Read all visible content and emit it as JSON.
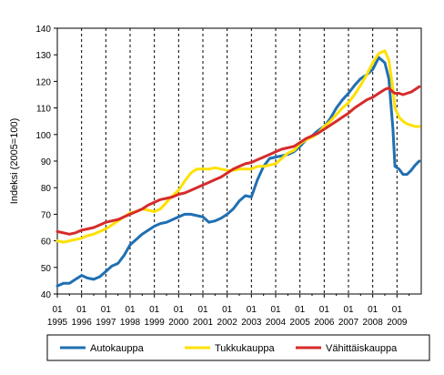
{
  "chart_data": {
    "type": "line",
    "ylabel": "Indeksi (2005=100)",
    "ylim": [
      40,
      140
    ],
    "yticks": [
      40,
      50,
      60,
      70,
      80,
      90,
      100,
      110,
      120,
      130,
      140
    ],
    "x_start": "1995-01",
    "x_end": "2009-12",
    "month_tick_label": "01",
    "year_labels": [
      "1995",
      "1996",
      "1997",
      "1998",
      "1999",
      "2000",
      "2001",
      "2002",
      "2003",
      "2004",
      "2005",
      "2006",
      "2007",
      "2008",
      "2009"
    ],
    "grid": "vertical dashed at each January",
    "legend_position": "bottom",
    "series": [
      {
        "name": "Autokauppa",
        "color": "#1f6fb2",
        "points": [
          [
            "1995-01",
            43
          ],
          [
            "1995-04",
            44
          ],
          [
            "1995-07",
            44
          ],
          [
            "1995-10",
            45.5
          ],
          [
            "1996-01",
            47
          ],
          [
            "1996-04",
            46
          ],
          [
            "1996-07",
            45.5
          ],
          [
            "1996-10",
            46.5
          ],
          [
            "1997-01",
            48.5
          ],
          [
            "1997-04",
            50.5
          ],
          [
            "1997-07",
            51.5
          ],
          [
            "1997-10",
            54.5
          ],
          [
            "1998-01",
            58.5
          ],
          [
            "1998-04",
            60.5
          ],
          [
            "1998-07",
            62.5
          ],
          [
            "1998-10",
            64
          ],
          [
            "1999-01",
            65.5
          ],
          [
            "1999-04",
            66.5
          ],
          [
            "1999-07",
            67
          ],
          [
            "1999-10",
            68
          ],
          [
            "2000-01",
            69
          ],
          [
            "2000-04",
            70
          ],
          [
            "2000-07",
            70
          ],
          [
            "2000-10",
            69.5
          ],
          [
            "2001-01",
            69
          ],
          [
            "2001-04",
            67
          ],
          [
            "2001-07",
            67.5
          ],
          [
            "2001-10",
            68.5
          ],
          [
            "2002-01",
            70
          ],
          [
            "2002-04",
            72
          ],
          [
            "2002-07",
            75
          ],
          [
            "2002-10",
            77
          ],
          [
            "2003-01",
            76.5
          ],
          [
            "2003-04",
            83
          ],
          [
            "2003-07",
            88
          ],
          [
            "2003-10",
            91
          ],
          [
            "2004-01",
            91.5
          ],
          [
            "2004-04",
            92
          ],
          [
            "2004-07",
            92.5
          ],
          [
            "2004-10",
            93.5
          ],
          [
            "2005-01",
            95.5
          ],
          [
            "2005-04",
            98
          ],
          [
            "2005-07",
            99.5
          ],
          [
            "2005-10",
            101.5
          ],
          [
            "2006-01",
            103
          ],
          [
            "2006-04",
            106
          ],
          [
            "2006-07",
            110
          ],
          [
            "2006-10",
            113
          ],
          [
            "2007-01",
            115.5
          ],
          [
            "2007-04",
            118.5
          ],
          [
            "2007-07",
            121
          ],
          [
            "2007-10",
            122.5
          ],
          [
            "2008-01",
            124.5
          ],
          [
            "2008-04",
            129
          ],
          [
            "2008-07",
            127
          ],
          [
            "2008-09",
            121
          ],
          [
            "2008-11",
            102
          ],
          [
            "2008-12",
            88
          ],
          [
            "2009-02",
            87
          ],
          [
            "2009-04",
            85
          ],
          [
            "2009-06",
            85
          ],
          [
            "2009-08",
            86.5
          ],
          [
            "2009-10",
            88.5
          ],
          [
            "2009-12",
            90
          ]
        ]
      },
      {
        "name": "Tukkukauppa",
        "color": "#ffe000",
        "points": [
          [
            "1995-01",
            60
          ],
          [
            "1995-04",
            59.5
          ],
          [
            "1995-07",
            60
          ],
          [
            "1995-10",
            60.5
          ],
          [
            "1996-01",
            61
          ],
          [
            "1996-04",
            62
          ],
          [
            "1996-07",
            62.5
          ],
          [
            "1996-10",
            63.5
          ],
          [
            "1997-01",
            64.5
          ],
          [
            "1997-04",
            66
          ],
          [
            "1997-07",
            67.5
          ],
          [
            "1997-10",
            69
          ],
          [
            "1998-01",
            70.5
          ],
          [
            "1998-04",
            71
          ],
          [
            "1998-07",
            72
          ],
          [
            "1998-10",
            71.5
          ],
          [
            "1999-01",
            71
          ],
          [
            "1999-04",
            72
          ],
          [
            "1999-07",
            74.5
          ],
          [
            "1999-10",
            77
          ],
          [
            "2000-01",
            79
          ],
          [
            "2000-04",
            82.5
          ],
          [
            "2000-07",
            85.5
          ],
          [
            "2000-10",
            87
          ],
          [
            "2001-01",
            87
          ],
          [
            "2001-04",
            87
          ],
          [
            "2001-07",
            87.5
          ],
          [
            "2001-10",
            87
          ],
          [
            "2002-01",
            86.5
          ],
          [
            "2002-04",
            86.5
          ],
          [
            "2002-07",
            87
          ],
          [
            "2002-10",
            87
          ],
          [
            "2003-01",
            87
          ],
          [
            "2003-04",
            88
          ],
          [
            "2003-07",
            88
          ],
          [
            "2003-10",
            88.5
          ],
          [
            "2004-01",
            89
          ],
          [
            "2004-04",
            91
          ],
          [
            "2004-07",
            93
          ],
          [
            "2004-10",
            94
          ],
          [
            "2005-01",
            96.5
          ],
          [
            "2005-04",
            98
          ],
          [
            "2005-07",
            99
          ],
          [
            "2005-10",
            100.5
          ],
          [
            "2006-01",
            103
          ],
          [
            "2006-04",
            105
          ],
          [
            "2006-07",
            107.5
          ],
          [
            "2006-10",
            110
          ],
          [
            "2007-01",
            112
          ],
          [
            "2007-04",
            115
          ],
          [
            "2007-07",
            118.5
          ],
          [
            "2007-10",
            122.5
          ],
          [
            "2008-01",
            127
          ],
          [
            "2008-04",
            130.5
          ],
          [
            "2008-07",
            131.5
          ],
          [
            "2008-09",
            128
          ],
          [
            "2008-11",
            117
          ],
          [
            "2008-12",
            110
          ],
          [
            "2009-02",
            106.5
          ],
          [
            "2009-04",
            105
          ],
          [
            "2009-06",
            104
          ],
          [
            "2009-08",
            103.5
          ],
          [
            "2009-10",
            103
          ],
          [
            "2009-12",
            103
          ]
        ]
      },
      {
        "name": "Vähittäiskauppa",
        "color": "#d62b2b",
        "points": [
          [
            "1995-01",
            63.5
          ],
          [
            "1995-04",
            63
          ],
          [
            "1995-07",
            62.5
          ],
          [
            "1995-10",
            63
          ],
          [
            "1996-01",
            64
          ],
          [
            "1996-04",
            64.5
          ],
          [
            "1996-07",
            65
          ],
          [
            "1996-10",
            66
          ],
          [
            "1997-01",
            67
          ],
          [
            "1997-04",
            67.5
          ],
          [
            "1997-07",
            68
          ],
          [
            "1997-10",
            69
          ],
          [
            "1998-01",
            70
          ],
          [
            "1998-04",
            71
          ],
          [
            "1998-07",
            72
          ],
          [
            "1998-10",
            73.5
          ],
          [
            "1999-01",
            74.5
          ],
          [
            "1999-04",
            75.5
          ],
          [
            "1999-07",
            76
          ],
          [
            "1999-10",
            76.5
          ],
          [
            "2000-01",
            77.5
          ],
          [
            "2000-04",
            78
          ],
          [
            "2000-07",
            79
          ],
          [
            "2000-10",
            80
          ],
          [
            "2001-01",
            81
          ],
          [
            "2001-04",
            82
          ],
          [
            "2001-07",
            83
          ],
          [
            "2001-10",
            84
          ],
          [
            "2002-01",
            85.5
          ],
          [
            "2002-04",
            87
          ],
          [
            "2002-07",
            88
          ],
          [
            "2002-10",
            89
          ],
          [
            "2003-01",
            89.5
          ],
          [
            "2003-04",
            90.5
          ],
          [
            "2003-07",
            91.5
          ],
          [
            "2003-10",
            92.5
          ],
          [
            "2004-01",
            93.5
          ],
          [
            "2004-04",
            94.5
          ],
          [
            "2004-07",
            95
          ],
          [
            "2004-10",
            95.5
          ],
          [
            "2005-01",
            97
          ],
          [
            "2005-04",
            98.5
          ],
          [
            "2005-07",
            99.5
          ],
          [
            "2005-10",
            100.5
          ],
          [
            "2006-01",
            102
          ],
          [
            "2006-04",
            103.5
          ],
          [
            "2006-07",
            105
          ],
          [
            "2006-10",
            106.5
          ],
          [
            "2007-01",
            108
          ],
          [
            "2007-04",
            110
          ],
          [
            "2007-07",
            111.5
          ],
          [
            "2007-10",
            113
          ],
          [
            "2008-01",
            114
          ],
          [
            "2008-04",
            115.5
          ],
          [
            "2008-07",
            117
          ],
          [
            "2008-09",
            117.5
          ],
          [
            "2008-11",
            116
          ],
          [
            "2008-12",
            115.5
          ],
          [
            "2009-02",
            115.5
          ],
          [
            "2009-04",
            115
          ],
          [
            "2009-06",
            115.5
          ],
          [
            "2009-08",
            116
          ],
          [
            "2009-10",
            117
          ],
          [
            "2009-12",
            118
          ]
        ]
      }
    ]
  }
}
